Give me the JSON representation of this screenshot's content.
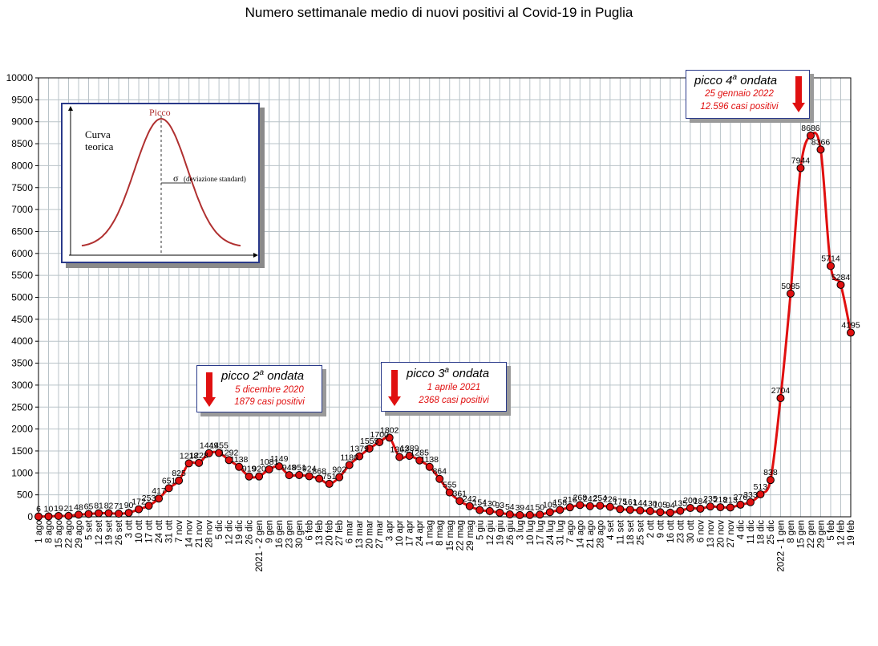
{
  "chart_data": {
    "type": "line",
    "title": "Numero settimanale medio di nuovi positivi al Covid-19 in Puglia",
    "ylim": [
      0,
      10000
    ],
    "yticks": [
      0,
      500,
      1000,
      1500,
      2000,
      2500,
      3000,
      3500,
      4000,
      4500,
      5000,
      5500,
      6000,
      6500,
      7000,
      7500,
      8000,
      8500,
      9000,
      9500,
      10000
    ],
    "grid": true,
    "line_color": "#e01010",
    "marker_color": "#e01010",
    "categories": [
      "1 ago",
      "8 ago",
      "15 ago",
      "22 ago",
      "29 ago",
      "5 set",
      "12 set",
      "19 set",
      "26 set",
      "3 ott",
      "10 ott",
      "17 ott",
      "24 ott",
      "31 ott",
      "7 nov",
      "14 nov",
      "21 nov",
      "28 nov",
      "5 dic",
      "12 dic",
      "19 dic",
      "26 dic",
      "2021 - 2 gen",
      "9 gen",
      "16 gen",
      "23 gen",
      "30 gen",
      "6 feb",
      "13 feb",
      "20 feb",
      "27 feb",
      "6 mar",
      "13 mar",
      "20 mar",
      "27 mar",
      "3 apr",
      "10 apr",
      "17 apr",
      "24 apr",
      "1 mag",
      "8 mag",
      "15 mag",
      "22 mag",
      "29 mag",
      "5 giu",
      "12 giu",
      "19 giu",
      "26 giu",
      "3 lug",
      "10 lug",
      "17 lug",
      "24 lug",
      "31 lug",
      "7 ago",
      "14 ago",
      "21 ago",
      "28 ago",
      "4 set",
      "11 set",
      "18 set",
      "25 set",
      "2 ott",
      "9 ott",
      "16 ott",
      "23 ott",
      "30 ott",
      "6 nov",
      "13 nov",
      "20 nov",
      "27 nov",
      "4 dic",
      "11 dic",
      "18 dic",
      "25 dic",
      "2022 - 1 gen",
      "8 gen",
      "15 gen",
      "22 gen",
      "29 gen",
      "5 feb",
      "12 feb",
      "19 feb"
    ],
    "values": [
      6,
      10,
      19,
      21,
      48,
      65,
      81,
      82,
      71,
      90,
      172,
      253,
      417,
      651,
      825,
      1218,
      1228,
      1449,
      1455,
      1292,
      1138,
      919,
      920,
      1081,
      1149,
      948,
      951,
      924,
      868,
      751,
      902,
      1180,
      1379,
      1555,
      1700,
      1802,
      1362,
      1389,
      1285,
      1138,
      864,
      555,
      361,
      242,
      154,
      130,
      93,
      54,
      39,
      41,
      50,
      105,
      158,
      216,
      268,
      242,
      254,
      226,
      175,
      161,
      144,
      130,
      105,
      94,
      135,
      200,
      184,
      235,
      218,
      213,
      276,
      333,
      513,
      838,
      2704,
      5085,
      7944,
      8686,
      8366,
      5714,
      5284,
      4195
    ],
    "labels": [
      "6",
      "10",
      "19",
      "21",
      "48",
      "65",
      "81",
      "82",
      "71",
      "90",
      "172",
      "253",
      "417",
      "651",
      "825",
      "1218",
      "1228",
      "1449",
      "1455",
      "1292",
      "1138",
      "919",
      "920",
      "1081",
      "1149",
      "948",
      "951",
      "924",
      "868",
      "751",
      "902",
      "1180",
      "1379",
      "1555",
      "1700",
      "1802",
      "1362",
      "1389",
      "1285",
      "1138",
      "864",
      "555",
      "361",
      "242",
      "154",
      "130",
      "93",
      "54",
      "39",
      "41",
      "50",
      "105",
      "158",
      "216",
      "268",
      "242",
      "254",
      "226",
      "175",
      "161",
      "144",
      "130",
      "105",
      "94",
      "135",
      "200",
      "184",
      "235",
      "218",
      "213",
      "276",
      "333",
      "513",
      "838",
      "2704",
      "5085",
      "7944",
      "8686",
      "8366",
      "5714",
      "5284",
      "4195"
    ]
  },
  "annotations": [
    {
      "title_main": "picco 2",
      "title_sup": "a",
      "title_rest": " ondata",
      "date": "5 dicembre 2020",
      "cases": "1879 casi positivi"
    },
    {
      "title_main": "picco 3",
      "title_sup": "a",
      "title_rest": " ondata",
      "date": "1 aprile 2021",
      "cases": "2368 casi positivi"
    },
    {
      "title_main": "picco 4",
      "title_sup": "a",
      "title_rest": " ondata",
      "date": "25 gennaio 2022",
      "cases": "12.596 casi positivi"
    }
  ],
  "inset": {
    "peak_label": "Picco",
    "curve_label_1": "Curva",
    "curve_label_2": "teorica",
    "sigma_symbol": "σ",
    "sigma_label": "(deviazione standard)",
    "curve_color": "#b03030"
  }
}
